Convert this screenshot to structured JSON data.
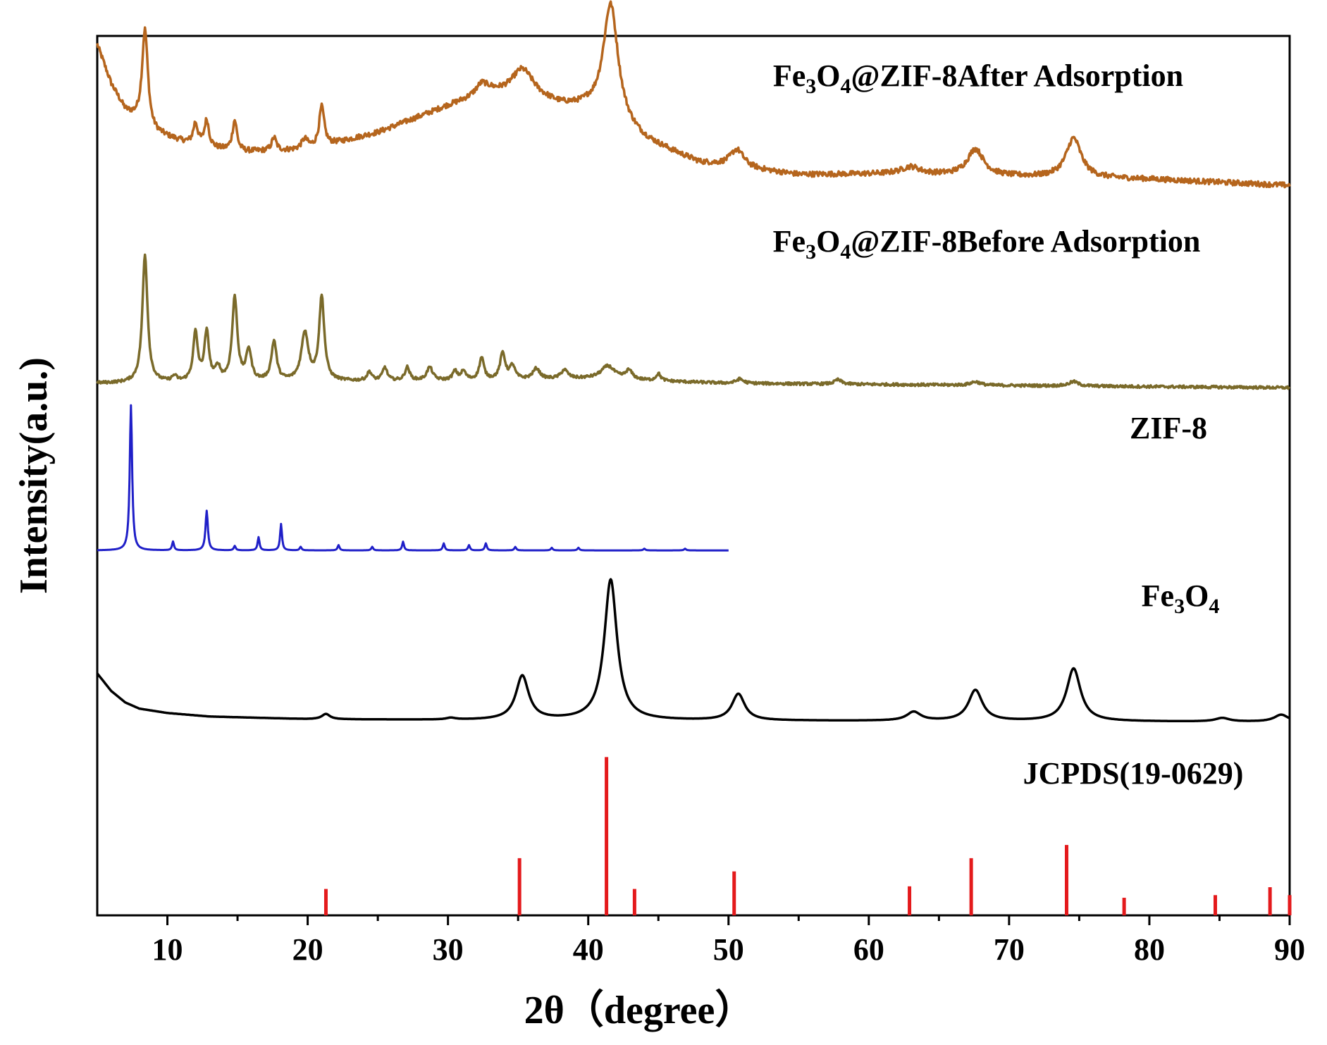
{
  "chart_data": {
    "type": "line",
    "xlabel": "2θ（degree）",
    "ylabel": "Intensity(a.u.)",
    "xlim": [
      5,
      90
    ],
    "xticks": [
      "10",
      "20",
      "30",
      "40",
      "50",
      "60",
      "70",
      "80",
      "90"
    ],
    "ylim": [
      0,
      10
    ],
    "yticks": [],
    "grid": false,
    "legend": "none (labels placed beside each trace)",
    "series": [
      {
        "name": "Fe3O4@ZIF-8After Adsorption",
        "label_parts": [
          "Fe",
          "3",
          "O",
          "4",
          "@ZIF-8After Adsorption"
        ],
        "color": "#b5651d",
        "baseline": 8.3,
        "background": [
          [
            5,
            1.6
          ],
          [
            6,
            1.15
          ],
          [
            7,
            0.85
          ],
          [
            9,
            0.6
          ],
          [
            12,
            0.45
          ],
          [
            15,
            0.38
          ],
          [
            20,
            0.4
          ],
          [
            25,
            0.6
          ],
          [
            30,
            0.9
          ],
          [
            33,
            1.05
          ],
          [
            36,
            1.0
          ],
          [
            38,
            0.9
          ],
          [
            40,
            0.85
          ],
          [
            44,
            0.5
          ],
          [
            48,
            0.25
          ],
          [
            55,
            0.12
          ],
          [
            62,
            0.13
          ],
          [
            70,
            0.1
          ],
          [
            80,
            0.07
          ],
          [
            90,
            0.0
          ]
        ],
        "peaks": [
          [
            8.4,
            1.1,
            0.25
          ],
          [
            12.0,
            0.25,
            0.2
          ],
          [
            12.8,
            0.3,
            0.2
          ],
          [
            14.8,
            0.35,
            0.2
          ],
          [
            17.6,
            0.15,
            0.2
          ],
          [
            19.8,
            0.12,
            0.3
          ],
          [
            21.0,
            0.45,
            0.22
          ],
          [
            32.4,
            0.12,
            0.5
          ],
          [
            35.3,
            0.3,
            0.9
          ],
          [
            41.6,
            1.35,
            0.65
          ],
          [
            50.6,
            0.2,
            0.6
          ],
          [
            63.0,
            0.08,
            0.8
          ],
          [
            67.6,
            0.3,
            0.7
          ],
          [
            74.6,
            0.45,
            0.65
          ]
        ],
        "noise": 0.03
      },
      {
        "name": "Fe3O4@ZIF-8Before Adsorption",
        "label_parts": [
          "Fe",
          "3",
          "O",
          "4",
          "@ZIF-8Before Adsorption"
        ],
        "color": "#7a6a2a",
        "baseline": 6.0,
        "background": [
          [
            5,
            0.05
          ],
          [
            30,
            0.08
          ],
          [
            40,
            0.1
          ],
          [
            50,
            0.05
          ],
          [
            90,
            0.0
          ]
        ],
        "peaks": [
          [
            8.4,
            1.45,
            0.22
          ],
          [
            10.5,
            0.06,
            0.2
          ],
          [
            12.0,
            0.55,
            0.2
          ],
          [
            12.8,
            0.55,
            0.2
          ],
          [
            13.6,
            0.15,
            0.2
          ],
          [
            14.8,
            0.95,
            0.22
          ],
          [
            15.8,
            0.35,
            0.22
          ],
          [
            17.6,
            0.45,
            0.22
          ],
          [
            19.8,
            0.55,
            0.3
          ],
          [
            21.0,
            0.95,
            0.22
          ],
          [
            24.4,
            0.1,
            0.2
          ],
          [
            25.5,
            0.15,
            0.2
          ],
          [
            27.1,
            0.15,
            0.2
          ],
          [
            28.7,
            0.15,
            0.25
          ],
          [
            30.5,
            0.1,
            0.2
          ],
          [
            31.1,
            0.1,
            0.2
          ],
          [
            32.4,
            0.25,
            0.2
          ],
          [
            33.9,
            0.3,
            0.22
          ],
          [
            34.6,
            0.15,
            0.22
          ],
          [
            36.3,
            0.12,
            0.3
          ],
          [
            38.3,
            0.1,
            0.3
          ],
          [
            41.4,
            0.15,
            0.6
          ],
          [
            42.9,
            0.1,
            0.3
          ],
          [
            45.0,
            0.08,
            0.2
          ],
          [
            50.8,
            0.05,
            0.3
          ],
          [
            57.8,
            0.05,
            0.3
          ],
          [
            67.6,
            0.04,
            0.4
          ],
          [
            74.6,
            0.05,
            0.4
          ]
        ],
        "noise": 0.015
      },
      {
        "name": "ZIF-8",
        "label_parts": [
          "ZIF-8"
        ],
        "color": "#1f1fc8",
        "baseline": 4.15,
        "xmax": 50,
        "background": [
          [
            5,
            0.0
          ],
          [
            50,
            0.0
          ]
        ],
        "peaks": [
          [
            7.4,
            1.65,
            0.1
          ],
          [
            10.4,
            0.1,
            0.08
          ],
          [
            12.8,
            0.45,
            0.1
          ],
          [
            14.8,
            0.05,
            0.08
          ],
          [
            16.5,
            0.15,
            0.08
          ],
          [
            18.1,
            0.3,
            0.08
          ],
          [
            19.5,
            0.04,
            0.08
          ],
          [
            22.2,
            0.06,
            0.08
          ],
          [
            24.6,
            0.04,
            0.08
          ],
          [
            26.8,
            0.1,
            0.08
          ],
          [
            29.7,
            0.08,
            0.08
          ],
          [
            31.5,
            0.06,
            0.08
          ],
          [
            32.7,
            0.08,
            0.08
          ],
          [
            34.8,
            0.04,
            0.08
          ],
          [
            37.4,
            0.03,
            0.08
          ],
          [
            39.3,
            0.03,
            0.08
          ],
          [
            44.0,
            0.02,
            0.08
          ],
          [
            46.9,
            0.02,
            0.08
          ]
        ],
        "noise": 0.0
      },
      {
        "name": "Fe3O4",
        "label_parts": [
          "Fe",
          "3",
          "O",
          "4"
        ],
        "color": "#000000",
        "baseline": 2.2,
        "background": [
          [
            5,
            0.55
          ],
          [
            6,
            0.35
          ],
          [
            7,
            0.22
          ],
          [
            8,
            0.15
          ],
          [
            10,
            0.1
          ],
          [
            13,
            0.06
          ],
          [
            20,
            0.03
          ],
          [
            30,
            0.02
          ],
          [
            90,
            0.0
          ]
        ],
        "peaks": [
          [
            21.3,
            0.06,
            0.35
          ],
          [
            30.2,
            0.02,
            0.4
          ],
          [
            35.3,
            0.5,
            0.55
          ],
          [
            41.6,
            1.6,
            0.55
          ],
          [
            50.7,
            0.3,
            0.55
          ],
          [
            63.2,
            0.1,
            0.6
          ],
          [
            67.6,
            0.35,
            0.6
          ],
          [
            74.6,
            0.6,
            0.6
          ],
          [
            85.2,
            0.04,
            0.6
          ],
          [
            89.4,
            0.08,
            0.6
          ]
        ],
        "noise": 0.0
      },
      {
        "name": "JCPDS(19-0629)",
        "label_parts": [
          "JCPDS(19-0629)"
        ],
        "type": "stick",
        "color": "#e41a1c",
        "baseline": 0.0,
        "sticks": [
          [
            21.3,
            0.3
          ],
          [
            35.1,
            0.65
          ],
          [
            41.3,
            1.8
          ],
          [
            43.3,
            0.3
          ],
          [
            50.4,
            0.5
          ],
          [
            62.9,
            0.33
          ],
          [
            67.3,
            0.65
          ],
          [
            74.1,
            0.8
          ],
          [
            78.2,
            0.2
          ],
          [
            84.7,
            0.23
          ],
          [
            88.6,
            0.32
          ],
          [
            90.0,
            0.23
          ]
        ]
      }
    ]
  }
}
